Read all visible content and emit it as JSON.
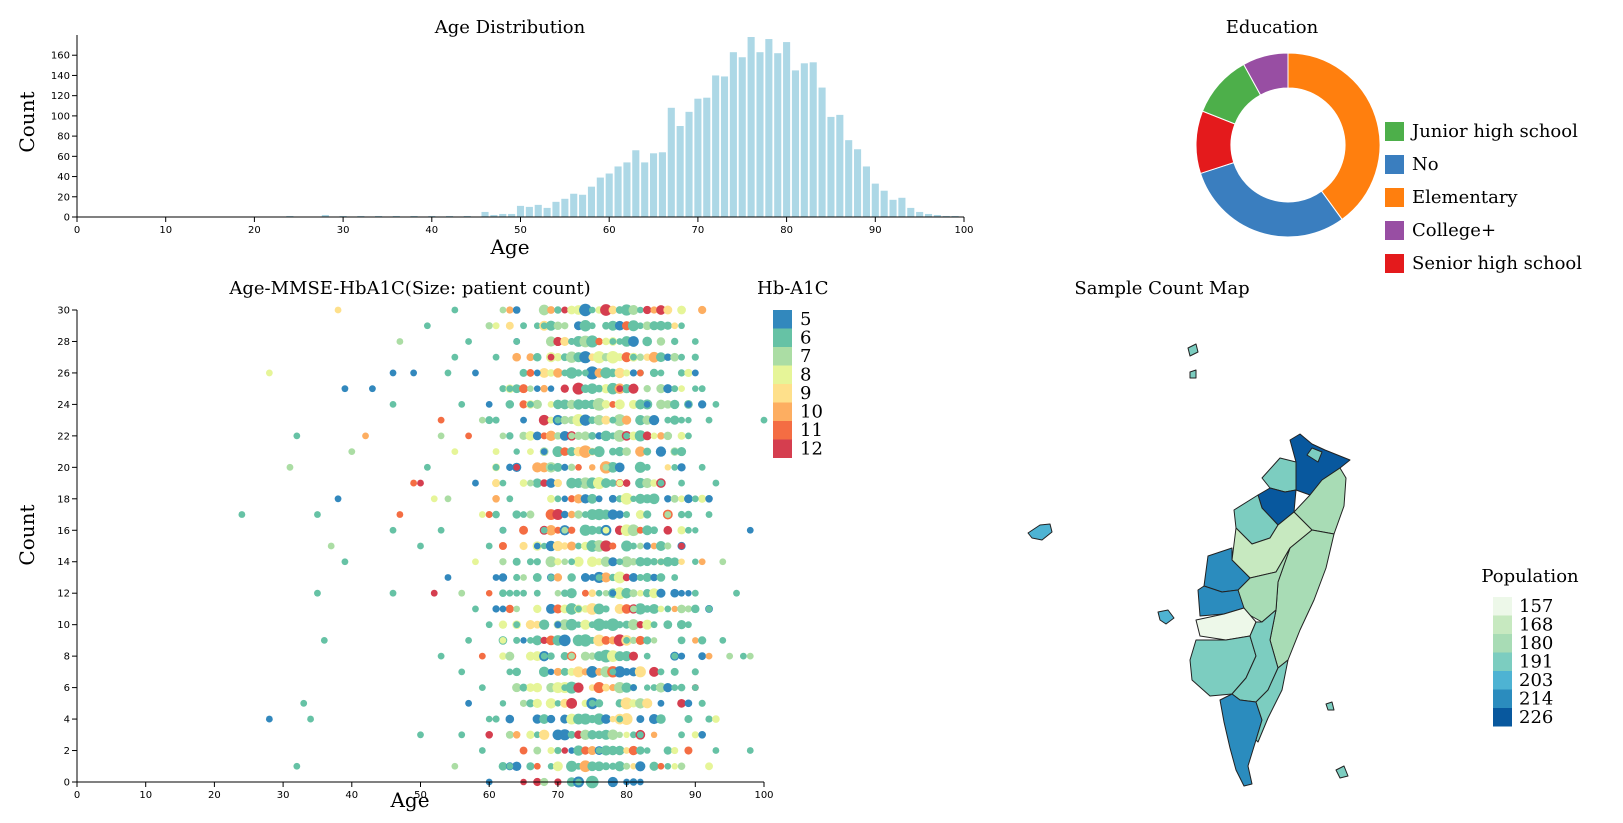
{
  "chart_data": [
    {
      "id": "age-hist",
      "type": "bar",
      "title": "Age Distribution",
      "xlabel": "Age",
      "ylabel": "Count",
      "xlim": [
        0,
        100
      ],
      "ylim": [
        0,
        180
      ],
      "xticks": [
        0,
        10,
        20,
        30,
        40,
        50,
        60,
        70,
        80,
        90,
        100
      ],
      "yticks": [
        0,
        20,
        40,
        60,
        80,
        100,
        120,
        140,
        160
      ],
      "color": "#add8e6",
      "x": [
        24,
        28,
        30,
        32,
        34,
        36,
        38,
        40,
        42,
        44,
        46,
        47,
        48,
        49,
        50,
        51,
        52,
        53,
        54,
        55,
        56,
        57,
        58,
        59,
        60,
        61,
        62,
        63,
        64,
        65,
        66,
        67,
        68,
        69,
        70,
        71,
        72,
        73,
        74,
        75,
        76,
        77,
        78,
        79,
        80,
        81,
        82,
        83,
        84,
        85,
        86,
        87,
        88,
        89,
        90,
        91,
        92,
        93,
        94,
        95,
        96,
        97,
        98,
        99
      ],
      "values": [
        1,
        2,
        1,
        1,
        1,
        1,
        1,
        1,
        1,
        1,
        5,
        2,
        3,
        3,
        11,
        10,
        12,
        9,
        15,
        18,
        23,
        22,
        30,
        39,
        43,
        50,
        54,
        66,
        54,
        63,
        64,
        108,
        90,
        104,
        117,
        118,
        140,
        139,
        163,
        158,
        178,
        163,
        176,
        162,
        173,
        145,
        152,
        153,
        128,
        99,
        101,
        76,
        67,
        50,
        33,
        26,
        17,
        19,
        9,
        5,
        3,
        2,
        1,
        1
      ]
    },
    {
      "id": "education",
      "type": "pie",
      "title": "Education",
      "donut": true,
      "slices": [
        {
          "label": "Elementary",
          "value": 40,
          "color": "#ff7f0e"
        },
        {
          "label": "No",
          "value": 30,
          "color": "#3a7ebf"
        },
        {
          "label": "Senior high school",
          "value": 11,
          "color": "#e41a1c"
        },
        {
          "label": "Junior high school",
          "value": 11,
          "color": "#4daf4a"
        },
        {
          "label": "College+",
          "value": 8,
          "color": "#984ea3"
        }
      ],
      "legend": [
        "Junior high school",
        "No",
        "Elementary",
        "College+",
        "Senior high school"
      ],
      "legend_placement": "right"
    },
    {
      "id": "age-mmse-hba1c",
      "type": "scatter",
      "title": "Age-MMSE-HbA1C(Size: patient count)",
      "xlabel": "Age",
      "ylabel": "Count",
      "xlim": [
        0,
        100
      ],
      "ylim": [
        0,
        30
      ],
      "xticks": [
        0,
        10,
        20,
        30,
        40,
        50,
        60,
        70,
        80,
        90,
        100
      ],
      "yticks": [
        0,
        2,
        4,
        6,
        8,
        10,
        12,
        14,
        16,
        18,
        20,
        22,
        24,
        26,
        28,
        30
      ],
      "size_encoding": "patient count",
      "color_encoding": "Hb-A1C",
      "x_range_dense": [
        45,
        95
      ],
      "points": [
        [
          24,
          17,
          6
        ],
        [
          28,
          26,
          8
        ],
        [
          28,
          4,
          5
        ],
        [
          31,
          20,
          7
        ],
        [
          32,
          22,
          6
        ],
        [
          32,
          1,
          6
        ],
        [
          33,
          5,
          6
        ],
        [
          34,
          4,
          6
        ],
        [
          35,
          17,
          6
        ],
        [
          35,
          12,
          6
        ],
        [
          36,
          9,
          6
        ],
        [
          37,
          15,
          7
        ],
        [
          38,
          18,
          5
        ],
        [
          38,
          30,
          9
        ],
        [
          39,
          14,
          6
        ],
        [
          39,
          25,
          5
        ],
        [
          40,
          21,
          7
        ],
        [
          42,
          22,
          10
        ],
        [
          43,
          25,
          5
        ],
        [
          46,
          26,
          5
        ],
        [
          46,
          12,
          6
        ],
        [
          46,
          16,
          6
        ],
        [
          46,
          24,
          6
        ],
        [
          47,
          17,
          11
        ],
        [
          47,
          28,
          7
        ],
        [
          49,
          19,
          11
        ],
        [
          49,
          26,
          5
        ],
        [
          50,
          3,
          6
        ],
        [
          50,
          15,
          6
        ],
        [
          50,
          19,
          12
        ],
        [
          51,
          20,
          6
        ],
        [
          51,
          29,
          6
        ],
        [
          52,
          18,
          8
        ],
        [
          52,
          12,
          12
        ],
        [
          53,
          8,
          6
        ],
        [
          53,
          22,
          7
        ],
        [
          53,
          16,
          6
        ],
        [
          53,
          23,
          11
        ],
        [
          54,
          13,
          5
        ],
        [
          54,
          18,
          7
        ],
        [
          54,
          26,
          6
        ],
        [
          55,
          30,
          6
        ],
        [
          55,
          21,
          8
        ],
        [
          55,
          27,
          6
        ],
        [
          55,
          1,
          7
        ],
        [
          56,
          3,
          6
        ],
        [
          56,
          12,
          7
        ],
        [
          56,
          7,
          6
        ],
        [
          56,
          24,
          6
        ],
        [
          57,
          28,
          6
        ],
        [
          57,
          22,
          11
        ],
        [
          57,
          5,
          5
        ],
        [
          57,
          9,
          6
        ],
        [
          58,
          14,
          8
        ],
        [
          58,
          11,
          6
        ],
        [
          58,
          19,
          5
        ],
        [
          58,
          26,
          5
        ],
        [
          59,
          2,
          6
        ],
        [
          59,
          17,
          8
        ],
        [
          59,
          8,
          11
        ],
        [
          59,
          6,
          6
        ],
        [
          59,
          23,
          7
        ],
        [
          60,
          15,
          6
        ],
        [
          60,
          10,
          6
        ],
        [
          60,
          24,
          5
        ],
        [
          60,
          0,
          5
        ],
        [
          61,
          20,
          6
        ],
        [
          61,
          13,
          5
        ],
        [
          61,
          27,
          6
        ],
        [
          61,
          4,
          6
        ],
        [
          62,
          9,
          8
        ],
        [
          62,
          16,
          6
        ],
        [
          62,
          11,
          5
        ],
        [
          62,
          22,
          7
        ],
        [
          63,
          18,
          6
        ],
        [
          63,
          1,
          6
        ],
        [
          63,
          25,
          6
        ],
        [
          63,
          7,
          6
        ],
        [
          64,
          14,
          6
        ],
        [
          64,
          20,
          12
        ],
        [
          64,
          10,
          6
        ],
        [
          64,
          28,
          6
        ],
        [
          65,
          12,
          6
        ],
        [
          65,
          6,
          6
        ],
        [
          65,
          17,
          6
        ],
        [
          65,
          23,
          5
        ],
        [
          66,
          19,
          7
        ],
        [
          66,
          24,
          6
        ],
        [
          66,
          3,
          8
        ],
        [
          66,
          9,
          6
        ],
        [
          67,
          26,
          5
        ],
        [
          67,
          1,
          11
        ],
        [
          67,
          15,
          5
        ],
        [
          67,
          12,
          6
        ],
        [
          68,
          21,
          5
        ],
        [
          68,
          8,
          6
        ],
        [
          68,
          29,
          6
        ],
        [
          68,
          16,
          6
        ],
        [
          69,
          27,
          12
        ],
        [
          69,
          13,
          6
        ],
        [
          69,
          4,
          5
        ],
        [
          69,
          20,
          6
        ],
        [
          70,
          18,
          6
        ],
        [
          70,
          10,
          5
        ],
        [
          70,
          23,
          6
        ],
        [
          70,
          2,
          6
        ],
        [
          71,
          26,
          6
        ],
        [
          71,
          16,
          7
        ],
        [
          71,
          6,
          6
        ],
        [
          71,
          12,
          6
        ],
        [
          72,
          22,
          7
        ],
        [
          72,
          14,
          6
        ],
        [
          72,
          8,
          7
        ],
        [
          72,
          28,
          6
        ],
        [
          73,
          19,
          6
        ],
        [
          73,
          24,
          6
        ],
        [
          73,
          11,
          6
        ],
        [
          73,
          0,
          6
        ],
        [
          74,
          17,
          6
        ],
        [
          74,
          12,
          11
        ],
        [
          74,
          26,
          6
        ],
        [
          74,
          9,
          6
        ],
        [
          75,
          21,
          6
        ],
        [
          75,
          15,
          6
        ],
        [
          75,
          5,
          6
        ],
        [
          75,
          29,
          6
        ],
        [
          76,
          25,
          6
        ],
        [
          76,
          13,
          6
        ],
        [
          76,
          18,
          5
        ],
        [
          76,
          2,
          6
        ],
        [
          77,
          20,
          7
        ],
        [
          77,
          10,
          6
        ],
        [
          77,
          26,
          6
        ],
        [
          77,
          16,
          8
        ],
        [
          78,
          12,
          5
        ],
        [
          78,
          23,
          6
        ],
        [
          78,
          7,
          6
        ],
        [
          78,
          28,
          6
        ],
        [
          79,
          19,
          8
        ],
        [
          79,
          14,
          6
        ],
        [
          79,
          4,
          6
        ],
        [
          79,
          25,
          12
        ],
        [
          80,
          22,
          6
        ],
        [
          80,
          9,
          6
        ],
        [
          80,
          17,
          6
        ],
        [
          80,
          0,
          5
        ],
        [
          81,
          27,
          6
        ],
        [
          81,
          11,
          7
        ],
        [
          81,
          15,
          6
        ],
        [
          81,
          6,
          5
        ],
        [
          82,
          20,
          6
        ],
        [
          82,
          26,
          11
        ],
        [
          82,
          13,
          6
        ],
        [
          82,
          3,
          6
        ],
        [
          83,
          24,
          5
        ],
        [
          83,
          18,
          6
        ],
        [
          83,
          9,
          6
        ],
        [
          83,
          28,
          6
        ],
        [
          84,
          16,
          6
        ],
        [
          84,
          22,
          8
        ],
        [
          84,
          10,
          6
        ],
        [
          84,
          1,
          6
        ],
        [
          85,
          26,
          6
        ],
        [
          85,
          14,
          6
        ],
        [
          85,
          19,
          6
        ],
        [
          85,
          5,
          5
        ],
        [
          86,
          23,
          6
        ],
        [
          86,
          11,
          6
        ],
        [
          86,
          17,
          7
        ],
        [
          86,
          29,
          6
        ],
        [
          87,
          21,
          6
        ],
        [
          87,
          8,
          6
        ],
        [
          87,
          25,
          6
        ],
        [
          87,
          13,
          6
        ],
        [
          88,
          27,
          6
        ],
        [
          88,
          15,
          12
        ],
        [
          88,
          3,
          6
        ],
        [
          88,
          19,
          6
        ],
        [
          89,
          22,
          6
        ],
        [
          89,
          10,
          6
        ],
        [
          89,
          24,
          5
        ],
        [
          89,
          16,
          6
        ],
        [
          90,
          18,
          6
        ],
        [
          90,
          12,
          6
        ],
        [
          90,
          6,
          6
        ],
        [
          90,
          28,
          6
        ],
        [
          91,
          20,
          6
        ],
        [
          91,
          14,
          10
        ],
        [
          91,
          25,
          6
        ],
        [
          91,
          8,
          5
        ],
        [
          92,
          23,
          6
        ],
        [
          92,
          17,
          6
        ],
        [
          92,
          11,
          6
        ],
        [
          93,
          2,
          6
        ],
        [
          93,
          24,
          6
        ],
        [
          93,
          19,
          6
        ],
        [
          94,
          9,
          6
        ],
        [
          94,
          14,
          7
        ],
        [
          95,
          8,
          7
        ],
        [
          96,
          12,
          6
        ],
        [
          97,
          8,
          6
        ],
        [
          98,
          16,
          5
        ],
        [
          98,
          2,
          6
        ],
        [
          98,
          8,
          7
        ],
        [
          100,
          23,
          6
        ]
      ],
      "legend_title": "Hb-A1C",
      "legend_values": [
        5,
        6,
        7,
        8,
        9,
        10,
        11,
        12
      ],
      "legend_colors": [
        "#3288bd",
        "#66c2a5",
        "#abdda4",
        "#e6f598",
        "#fee08b",
        "#fdae61",
        "#f46d43",
        "#d53e4f"
      ]
    },
    {
      "id": "sample-count-map",
      "type": "heatmap",
      "title": "Sample Count Map",
      "legend_title": "Population",
      "legend_values": [
        157,
        168,
        180,
        191,
        203,
        214,
        226
      ],
      "legend_colors": [
        "#edf8e9",
        "#c7e9c0",
        "#a8dcb5",
        "#7ccdc0",
        "#4eb3d3",
        "#2b8cbe",
        "#08589e"
      ]
    }
  ]
}
